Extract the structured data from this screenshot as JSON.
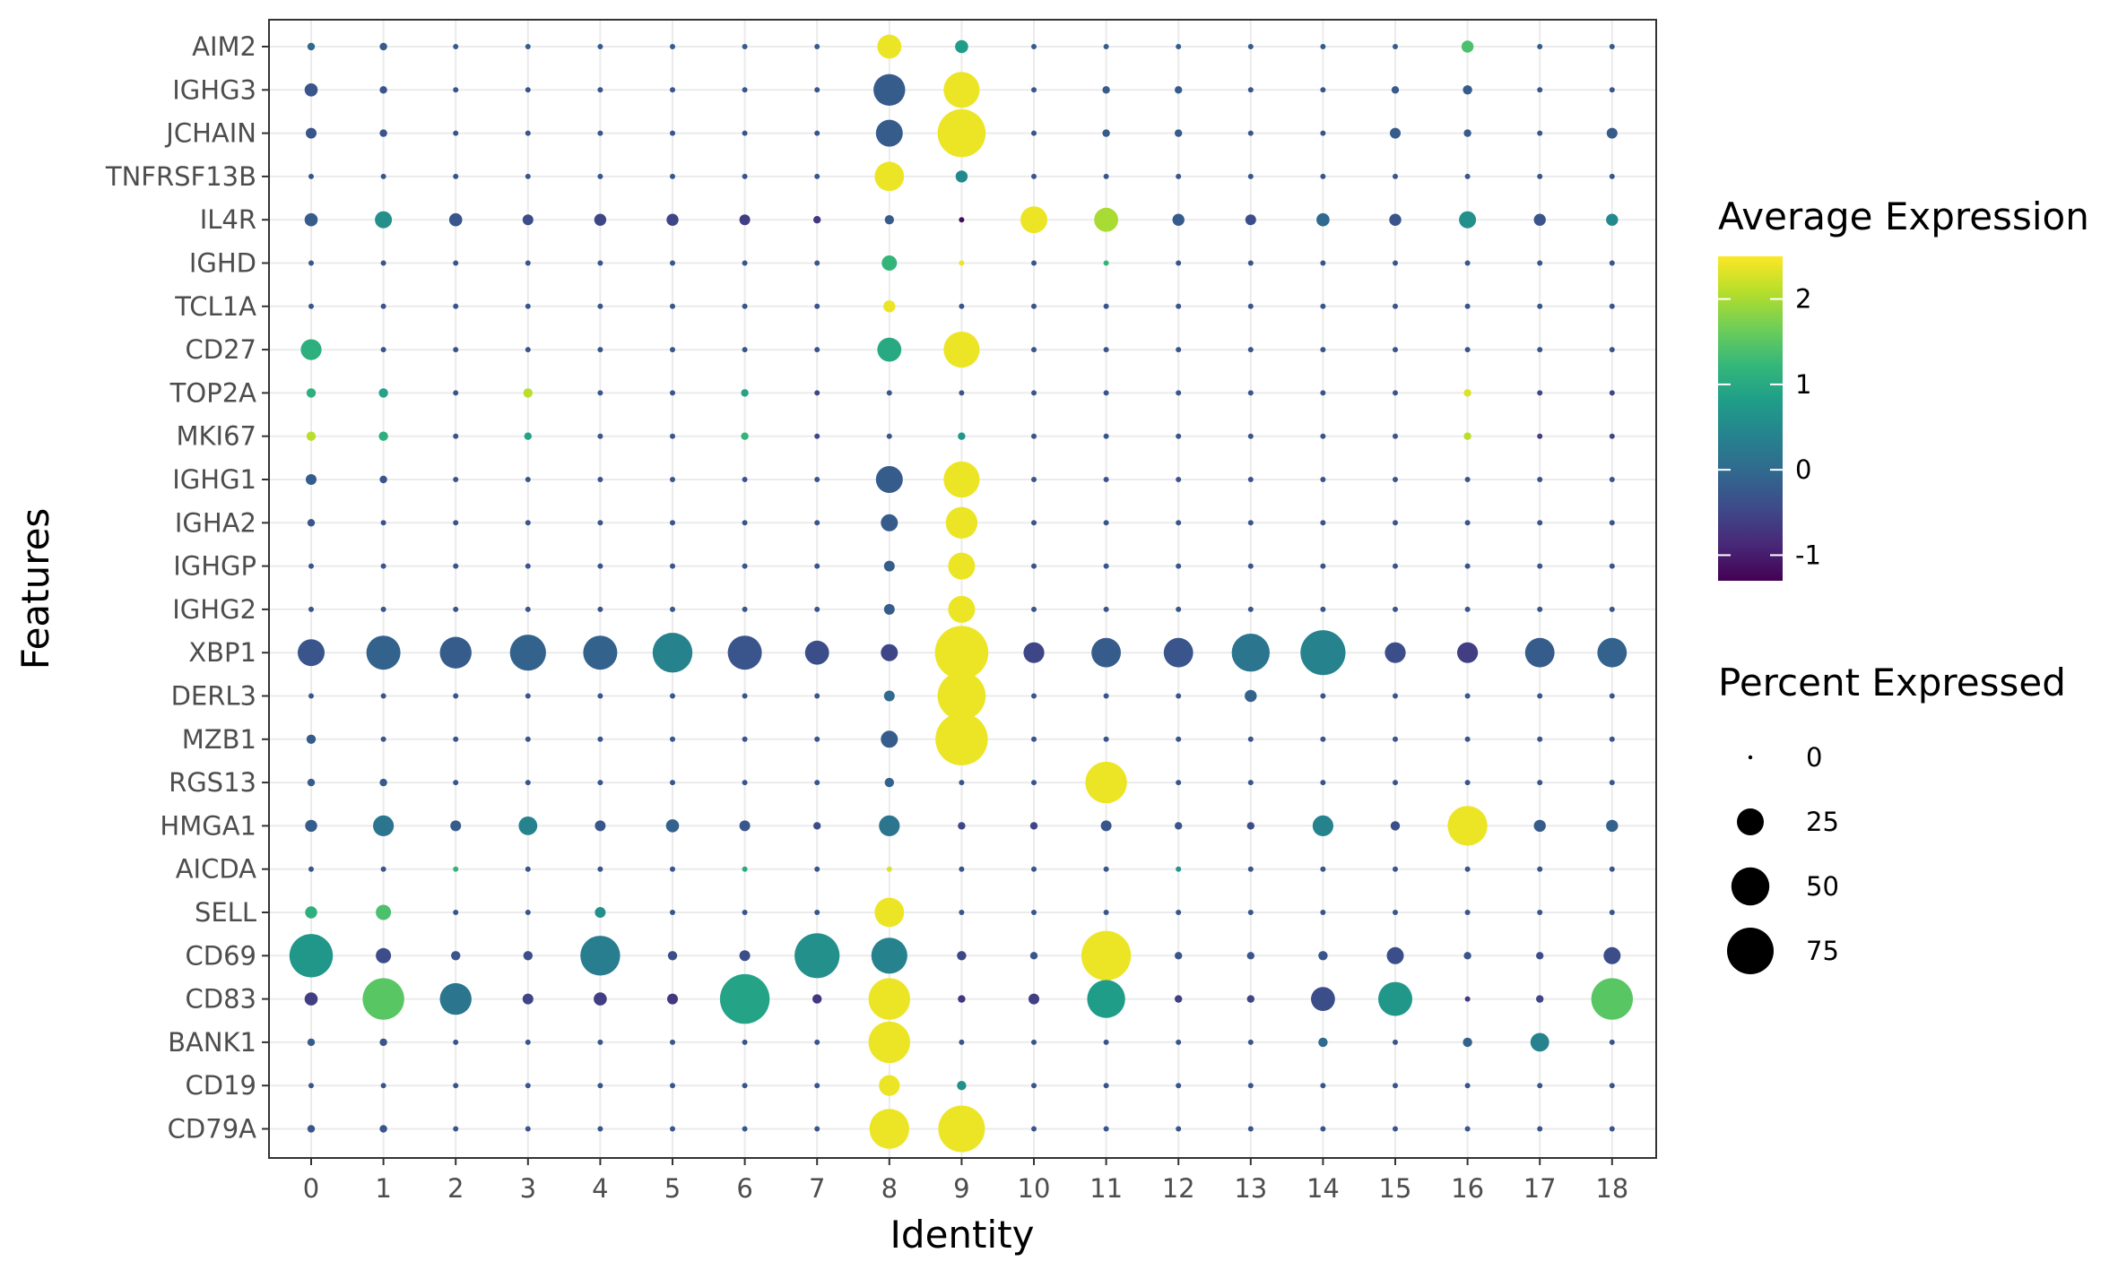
{
  "chart_data": {
    "type": "scatter",
    "xlabel": "Identity",
    "ylabel": "Features",
    "categories": [
      "0",
      "1",
      "2",
      "3",
      "4",
      "5",
      "6",
      "7",
      "8",
      "9",
      "10",
      "11",
      "12",
      "13",
      "14",
      "15",
      "16",
      "17",
      "18"
    ],
    "features": [
      "AIM2",
      "IGHG3",
      "JCHAIN",
      "TNFRSF13B",
      "IL4R",
      "IGHD",
      "TCL1A",
      "CD27",
      "TOP2A",
      "MKI67",
      "IGHG1",
      "IGHA2",
      "IGHGP",
      "IGHG2",
      "XBP1",
      "DERL3",
      "MZB1",
      "RGS13",
      "HMGA1",
      "AICDA",
      "SELL",
      "CD69",
      "CD83",
      "BANK1",
      "CD19",
      "CD79A"
    ],
    "grid": true,
    "percent_expressed": [
      [
        2,
        2,
        1,
        1,
        1,
        1,
        1,
        1,
        20,
        6,
        1,
        1,
        1,
        1,
        1,
        1,
        5,
        1,
        1
      ],
      [
        6,
        2,
        1,
        1,
        1,
        1,
        1,
        1,
        35,
        45,
        1,
        2,
        2,
        1,
        1,
        2,
        3,
        1,
        1
      ],
      [
        4,
        2,
        1,
        1,
        1,
        1,
        1,
        1,
        25,
        80,
        1,
        2,
        2,
        1,
        1,
        4,
        2,
        1,
        4
      ],
      [
        1,
        1,
        1,
        1,
        1,
        1,
        1,
        1,
        30,
        5,
        1,
        1,
        1,
        1,
        1,
        1,
        1,
        1,
        1
      ],
      [
        6,
        10,
        6,
        4,
        5,
        5,
        4,
        2,
        3,
        1,
        25,
        20,
        5,
        4,
        6,
        5,
        10,
        5,
        5
      ],
      [
        1,
        1,
        1,
        1,
        1,
        1,
        1,
        1,
        8,
        1,
        1,
        1,
        1,
        1,
        1,
        1,
        1,
        1,
        1
      ],
      [
        1,
        1,
        1,
        1,
        1,
        1,
        1,
        1,
        5,
        1,
        1,
        1,
        1,
        1,
        1,
        1,
        1,
        1,
        1
      ],
      [
        15,
        1,
        1,
        1,
        1,
        1,
        1,
        1,
        20,
        45,
        1,
        1,
        1,
        1,
        1,
        1,
        1,
        1,
        1
      ],
      [
        3,
        3,
        1,
        3,
        1,
        1,
        2,
        1,
        1,
        1,
        1,
        1,
        1,
        1,
        1,
        1,
        2,
        1,
        1
      ],
      [
        3,
        3,
        1,
        2,
        1,
        1,
        2,
        1,
        1,
        2,
        1,
        1,
        1,
        1,
        1,
        1,
        2,
        1,
        1
      ],
      [
        4,
        2,
        1,
        1,
        1,
        1,
        1,
        1,
        25,
        45,
        1,
        1,
        1,
        1,
        1,
        1,
        1,
        1,
        1
      ],
      [
        2,
        1,
        1,
        1,
        1,
        1,
        1,
        1,
        10,
        35,
        1,
        1,
        1,
        1,
        1,
        1,
        1,
        1,
        1
      ],
      [
        1,
        1,
        1,
        1,
        1,
        1,
        1,
        1,
        4,
        25,
        1,
        1,
        1,
        1,
        1,
        1,
        1,
        1,
        1
      ],
      [
        1,
        1,
        1,
        1,
        1,
        1,
        1,
        1,
        4,
        25,
        1,
        1,
        1,
        1,
        1,
        1,
        1,
        1,
        1
      ],
      [
        25,
        40,
        35,
        45,
        40,
        55,
        40,
        20,
        10,
        99,
        15,
        30,
        30,
        50,
        70,
        15,
        15,
        30,
        30
      ],
      [
        1,
        1,
        1,
        1,
        1,
        1,
        1,
        1,
        4,
        80,
        1,
        1,
        1,
        5,
        1,
        1,
        1,
        1,
        1
      ],
      [
        3,
        1,
        1,
        1,
        1,
        1,
        1,
        1,
        10,
        95,
        1,
        1,
        1,
        1,
        1,
        1,
        1,
        1,
        1
      ],
      [
        2,
        2,
        1,
        1,
        1,
        1,
        1,
        1,
        3,
        1,
        1,
        60,
        1,
        1,
        1,
        1,
        1,
        1,
        1
      ],
      [
        5,
        15,
        4,
        12,
        4,
        6,
        4,
        2,
        15,
        2,
        2,
        4,
        2,
        2,
        15,
        3,
        55,
        5,
        5
      ],
      [
        1,
        1,
        1,
        1,
        1,
        1,
        1,
        1,
        1,
        1,
        1,
        1,
        1,
        1,
        1,
        1,
        1,
        1,
        1
      ],
      [
        5,
        8,
        1,
        1,
        4,
        1,
        1,
        1,
        30,
        1,
        1,
        1,
        1,
        1,
        1,
        1,
        1,
        1,
        1
      ],
      [
        65,
        8,
        3,
        3,
        55,
        3,
        4,
        70,
        45,
        3,
        2,
        85,
        2,
        2,
        3,
        10,
        2,
        2,
        10
      ],
      [
        6,
        60,
        35,
        4,
        6,
        4,
        85,
        3,
        60,
        2,
        4,
        50,
        2,
        2,
        20,
        40,
        1,
        2,
        60
      ],
      [
        2,
        2,
        1,
        1,
        1,
        1,
        1,
        1,
        60,
        1,
        1,
        1,
        1,
        1,
        3,
        1,
        3,
        12,
        1
      ],
      [
        1,
        1,
        1,
        1,
        1,
        1,
        1,
        1,
        15,
        3,
        1,
        1,
        1,
        1,
        1,
        1,
        1,
        1,
        1
      ],
      [
        2,
        2,
        1,
        1,
        1,
        1,
        1,
        1,
        55,
        75,
        1,
        1,
        1,
        1,
        1,
        1,
        1,
        1,
        1
      ]
    ],
    "average_expression": [
      [
        0.0,
        -0.2,
        -0.2,
        -0.2,
        -0.2,
        -0.2,
        -0.2,
        -0.2,
        2.4,
        0.8,
        -0.2,
        -0.2,
        -0.2,
        -0.2,
        -0.2,
        -0.2,
        1.4,
        -0.2,
        -0.2
      ],
      [
        -0.3,
        -0.3,
        -0.3,
        -0.3,
        -0.3,
        -0.3,
        -0.3,
        -0.3,
        -0.2,
        2.4,
        -0.3,
        -0.2,
        -0.2,
        -0.3,
        -0.3,
        -0.2,
        -0.2,
        -0.3,
        -0.3
      ],
      [
        -0.3,
        -0.3,
        -0.3,
        -0.3,
        -0.3,
        -0.3,
        -0.3,
        -0.3,
        -0.2,
        2.4,
        -0.3,
        -0.2,
        -0.2,
        -0.3,
        -0.3,
        -0.2,
        -0.2,
        -0.3,
        -0.2
      ],
      [
        -0.3,
        -0.3,
        -0.3,
        -0.3,
        -0.3,
        -0.3,
        -0.3,
        -0.3,
        2.4,
        0.5,
        -0.3,
        -0.3,
        -0.3,
        -0.3,
        -0.3,
        -0.3,
        -0.3,
        -0.3,
        -0.3
      ],
      [
        -0.2,
        0.6,
        -0.3,
        -0.4,
        -0.5,
        -0.5,
        -0.6,
        -0.7,
        -0.2,
        -1.2,
        2.4,
        2.0,
        -0.2,
        -0.4,
        0.0,
        -0.3,
        0.6,
        -0.3,
        0.5
      ],
      [
        -0.3,
        -0.3,
        -0.3,
        -0.3,
        -0.3,
        -0.3,
        -0.3,
        -0.3,
        1.2,
        2.4,
        -0.3,
        1.2,
        -0.3,
        -0.3,
        -0.3,
        -0.3,
        -0.3,
        -0.3,
        -0.3
      ],
      [
        -0.3,
        -0.3,
        -0.3,
        -0.3,
        -0.3,
        -0.3,
        -0.3,
        -0.3,
        2.4,
        -0.3,
        -0.3,
        -0.3,
        -0.3,
        -0.3,
        -0.3,
        -0.3,
        -0.3,
        -0.3,
        -0.3
      ],
      [
        1.1,
        -0.3,
        -0.3,
        -0.3,
        -0.3,
        -0.3,
        -0.3,
        -0.3,
        1.0,
        2.4,
        -0.3,
        -0.3,
        -0.3,
        -0.3,
        -0.3,
        -0.3,
        -0.3,
        -0.3,
        -0.3
      ],
      [
        1.1,
        0.9,
        -0.3,
        2.1,
        -0.3,
        -0.3,
        0.9,
        -0.5,
        -0.3,
        -0.3,
        -0.3,
        -0.3,
        -0.3,
        -0.3,
        -0.3,
        -0.3,
        2.3,
        -0.5,
        -0.5
      ],
      [
        2.1,
        1.1,
        -0.3,
        0.9,
        -0.3,
        -0.3,
        1.2,
        -0.5,
        -0.3,
        0.7,
        -0.3,
        -0.3,
        -0.3,
        -0.3,
        -0.3,
        -0.3,
        2.1,
        -0.6,
        -0.5
      ],
      [
        -0.2,
        -0.3,
        -0.3,
        -0.3,
        -0.3,
        -0.3,
        -0.3,
        -0.3,
        -0.2,
        2.4,
        -0.3,
        -0.3,
        -0.3,
        -0.3,
        -0.3,
        -0.3,
        -0.3,
        -0.3,
        -0.3
      ],
      [
        -0.3,
        -0.3,
        -0.3,
        -0.3,
        -0.3,
        -0.3,
        -0.3,
        -0.3,
        -0.2,
        2.4,
        -0.3,
        -0.3,
        -0.3,
        -0.3,
        -0.3,
        -0.3,
        -0.3,
        -0.3,
        -0.3
      ],
      [
        -0.3,
        -0.3,
        -0.3,
        -0.3,
        -0.3,
        -0.3,
        -0.3,
        -0.3,
        -0.2,
        2.4,
        -0.3,
        -0.3,
        -0.3,
        -0.3,
        -0.3,
        -0.3,
        -0.3,
        -0.3,
        -0.3
      ],
      [
        -0.3,
        -0.3,
        -0.3,
        -0.3,
        -0.3,
        -0.3,
        -0.3,
        -0.3,
        -0.2,
        2.4,
        -0.3,
        -0.3,
        -0.3,
        -0.3,
        -0.3,
        -0.3,
        -0.3,
        -0.3,
        -0.3
      ],
      [
        -0.3,
        -0.1,
        -0.2,
        -0.1,
        -0.1,
        0.4,
        -0.3,
        -0.4,
        -0.5,
        2.4,
        -0.5,
        -0.2,
        -0.3,
        0.2,
        0.4,
        -0.4,
        -0.6,
        -0.2,
        -0.1
      ],
      [
        -0.3,
        -0.3,
        -0.3,
        -0.3,
        -0.3,
        -0.3,
        -0.3,
        -0.3,
        0.0,
        2.4,
        -0.3,
        -0.3,
        -0.3,
        -0.1,
        -0.3,
        -0.3,
        -0.3,
        -0.3,
        -0.3
      ],
      [
        -0.2,
        -0.3,
        -0.3,
        -0.3,
        -0.3,
        -0.3,
        -0.3,
        -0.3,
        -0.2,
        2.4,
        -0.3,
        -0.3,
        -0.3,
        -0.3,
        -0.3,
        -0.3,
        -0.3,
        -0.3,
        -0.3
      ],
      [
        -0.2,
        -0.2,
        -0.3,
        -0.3,
        -0.3,
        -0.3,
        -0.3,
        -0.3,
        -0.1,
        -0.3,
        -0.3,
        2.4,
        -0.3,
        -0.3,
        -0.3,
        -0.3,
        -0.3,
        -0.3,
        -0.3
      ],
      [
        -0.2,
        0.2,
        -0.2,
        0.4,
        -0.3,
        -0.1,
        -0.3,
        -0.4,
        0.2,
        -0.5,
        -0.5,
        -0.3,
        -0.3,
        -0.4,
        0.4,
        -0.4,
        2.4,
        -0.2,
        -0.1
      ],
      [
        -0.3,
        -0.3,
        1.2,
        -0.3,
        -0.3,
        -0.3,
        1.0,
        -0.3,
        2.3,
        -0.3,
        -0.3,
        -0.3,
        0.7,
        -0.3,
        -0.3,
        -0.3,
        -0.3,
        -0.3,
        -0.3
      ],
      [
        1.1,
        1.4,
        -0.3,
        -0.3,
        0.6,
        -0.3,
        -0.3,
        -0.3,
        2.4,
        -0.3,
        -0.3,
        -0.3,
        -0.3,
        -0.3,
        -0.3,
        -0.3,
        -0.3,
        -0.3,
        -0.3
      ],
      [
        0.7,
        -0.4,
        -0.3,
        -0.4,
        0.3,
        -0.4,
        -0.4,
        0.6,
        0.4,
        -0.5,
        -0.3,
        2.4,
        -0.3,
        -0.3,
        -0.3,
        -0.4,
        -0.3,
        -0.4,
        -0.4
      ],
      [
        -0.6,
        1.5,
        0.2,
        -0.5,
        -0.6,
        -0.7,
        0.9,
        -0.7,
        2.4,
        -0.7,
        -0.6,
        0.8,
        -0.6,
        -0.5,
        -0.4,
        0.7,
        -0.7,
        -0.5,
        1.5
      ],
      [
        -0.2,
        -0.3,
        -0.3,
        -0.3,
        -0.3,
        -0.3,
        -0.3,
        -0.3,
        2.4,
        -0.3,
        -0.3,
        -0.3,
        -0.3,
        -0.3,
        0.0,
        -0.3,
        -0.1,
        0.4,
        -0.3
      ],
      [
        -0.3,
        -0.3,
        -0.3,
        -0.3,
        -0.3,
        -0.3,
        -0.3,
        -0.3,
        2.4,
        0.6,
        -0.3,
        -0.3,
        -0.3,
        -0.3,
        -0.3,
        -0.3,
        -0.3,
        -0.3,
        -0.3
      ],
      [
        -0.3,
        -0.3,
        -0.3,
        -0.3,
        -0.3,
        -0.3,
        -0.3,
        -0.3,
        2.4,
        2.4,
        -0.3,
        -0.3,
        -0.3,
        -0.3,
        -0.3,
        -0.3,
        -0.3,
        -0.3,
        -0.3
      ]
    ],
    "color_scale": {
      "title": "Average Expression",
      "min": -1.3,
      "max": 2.5,
      "ticks": [
        2,
        1,
        0,
        -1
      ],
      "tick_labels": [
        "2",
        "1",
        "0",
        "-1"
      ],
      "palette": "viridis",
      "stops": [
        "#440154",
        "#482878",
        "#3e4a89",
        "#31688e",
        "#26828e",
        "#1f9e89",
        "#35b779",
        "#6ece58",
        "#b5de2b",
        "#fde725"
      ]
    },
    "size_scale": {
      "title": "Percent Expressed",
      "values": [
        0,
        25,
        50,
        75
      ],
      "labels": [
        "0",
        "25",
        "50",
        "75"
      ]
    },
    "xlim": [
      -0.5,
      18.5
    ],
    "legend_position": "right"
  }
}
